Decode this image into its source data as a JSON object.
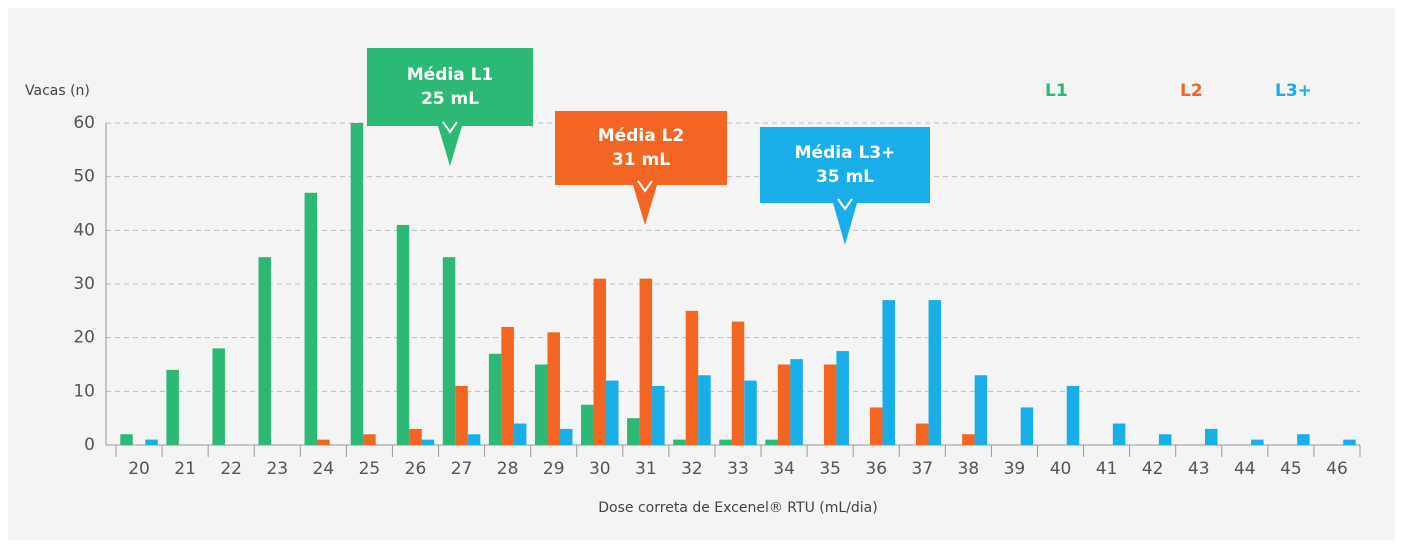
{
  "chart_data": {
    "type": "bar",
    "ylabel": "Vacas (n)",
    "xlabel": "Dose correta de Excenel® RTU (mL/dia)",
    "categories": [
      "20",
      "21",
      "22",
      "23",
      "24",
      "25",
      "26",
      "27",
      "28",
      "29",
      "30",
      "31",
      "32",
      "33",
      "34",
      "35",
      "36",
      "37",
      "38",
      "39",
      "40",
      "41",
      "42",
      "43",
      "44",
      "45",
      "46"
    ],
    "series": [
      {
        "name": "L1",
        "color": "#2db875",
        "values": [
          2,
          14,
          18,
          35,
          47,
          60,
          41,
          35,
          17,
          15,
          7.5,
          5,
          1,
          1,
          1,
          0,
          0,
          0,
          0,
          0,
          0,
          0,
          0,
          0,
          0,
          0,
          0
        ]
      },
      {
        "name": "L2",
        "color": "#f26522",
        "values": [
          0,
          0,
          0,
          0,
          1,
          2,
          3,
          11,
          22,
          21,
          31,
          31,
          25,
          23,
          15,
          15,
          7,
          4,
          2,
          0,
          0,
          0,
          0,
          0,
          0,
          0,
          0
        ]
      },
      {
        "name": "L3+",
        "color": "#1aaee9",
        "values": [
          1,
          0,
          0,
          0,
          0,
          0,
          1,
          2,
          4,
          3,
          12,
          11,
          13,
          12,
          16,
          17.5,
          27,
          27,
          13,
          7,
          11,
          4,
          2,
          3,
          1,
          2,
          1
        ]
      }
    ],
    "annotations": [
      {
        "lines": [
          "Média L1",
          "25 mL"
        ],
        "color": "#2db875"
      },
      {
        "lines": [
          "Média L2",
          "31 mL"
        ],
        "color": "#f26522"
      },
      {
        "lines": [
          "Média L3+",
          "35 mL"
        ],
        "color": "#1aaee9"
      }
    ],
    "ylim": [
      0,
      60
    ],
    "yticks": [
      0,
      10,
      20,
      30,
      40,
      50,
      60
    ],
    "grid": true
  }
}
